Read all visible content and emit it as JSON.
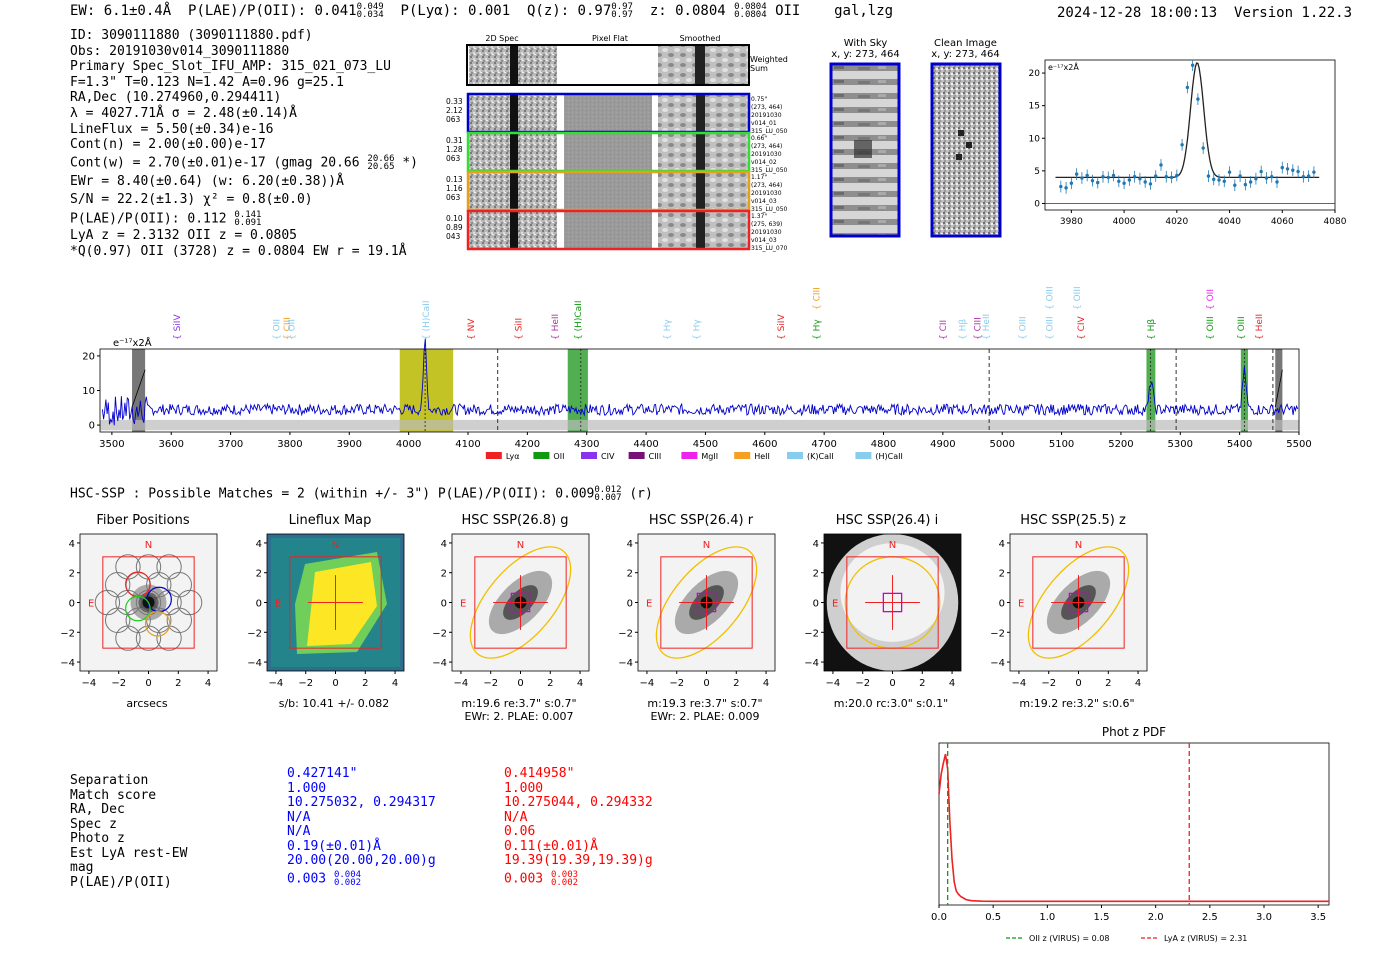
{
  "header": {
    "ew": "EW: 6.1±0.4Å",
    "plae_label": "P(LAE)/P(OII): 0.041",
    "plae_hi": "0.049",
    "plae_lo": "0.034",
    "plya": "P(Lyα): 0.001",
    "qz_label": "Q(z): 0.97",
    "qz_hi": "0.97",
    "qz_lo": "0.97",
    "z_label": "z: 0.0804",
    "z_hi": "0.0804",
    "z_lo": "0.0804",
    "z_line": "OII",
    "classes": "gal,lzg",
    "timestamp": "2024-12-28 18:00:13",
    "version": "Version 1.22.3"
  },
  "info": {
    "lines": [
      "ID: 3090111880 (3090111880.pdf)",
      "Obs: 20191030v014_3090111880",
      "Primary Spec_Slot_IFU_AMP: 315_021_073_LU",
      "F=1.3\"  T=0.123  N=1.42  A=0.96  g=25.1",
      "RA,Dec (10.274960,0.294411)",
      "λ = 4027.71Å  σ = 2.48(±0.14)Å",
      "LineFlux = 5.50(±0.34)e-16",
      "Cont(n) = 2.00(±0.00)e-17"
    ],
    "contw": "Cont(w) = 2.70(±0.01)e-17 (gmag 20.66",
    "contw_hi": "20.66",
    "contw_lo": "20.65",
    "contw_end": "*)",
    "ewr": "EWr = 8.40(±0.64) (w: 6.20(±0.38))Å",
    "sn": "S/N = 22.2(±1.3)  χ² = 0.8(±0.0)",
    "plae": "P(LAE)/P(OII): 0.112",
    "plae_hi": "0.141",
    "plae_lo": "0.091",
    "lya": "LyA z = 2.3132  OII z = 0.0805",
    "q": "*Q(0.97) OII (3728) z = 0.0804  EW r = 19.1Å"
  },
  "spec2d": {
    "col_titles": [
      "2D Spec",
      "Pixel Flat",
      "Smoothed"
    ],
    "weighted_label": "Weighted Sum",
    "rows": [
      {
        "left": [
          "0.33",
          "2.12",
          "063"
        ],
        "right": [
          "0.75\"",
          "(273, 464)",
          "20191030",
          "v014_01",
          "315_LU_050"
        ],
        "color": "#0000cc"
      },
      {
        "left": [
          "0.31",
          "1.28",
          "063"
        ],
        "right": [
          "0.66\"",
          "(273, 464)",
          "20191030",
          "v014_02",
          "315_LU_050"
        ],
        "color": "#33dd33"
      },
      {
        "left": [
          "0.13",
          "1.16",
          "063"
        ],
        "right": [
          "1.17\"",
          "(273, 464)",
          "20191030",
          "v014_03",
          "315_LU_050"
        ],
        "color": "#e6a020"
      },
      {
        "left": [
          "0.10",
          "0.89",
          "043"
        ],
        "right": [
          "1.37\"",
          "(275, 639)",
          "20191030",
          "v014_03",
          "315_LU_070"
        ],
        "color": "#ee2222"
      }
    ]
  },
  "stamps": {
    "with_sky": "With Sky",
    "with_sky_xy": "x, y: 273, 464",
    "clean": "Clean Image",
    "clean_xy": "x, y: 273, 464"
  },
  "zoom_plot": {
    "unit": "e⁻¹⁷x2Å"
  },
  "full_spec": {
    "unit": "e⁻¹⁷x2Å",
    "line_labels": [
      {
        "text": "SiIV",
        "wave": 3615,
        "color": "#8833ee",
        "tier": 0
      },
      {
        "text": "OII",
        "wave": 3782,
        "color": "#88ccee",
        "tier": 0
      },
      {
        "text": "CIII",
        "wave": 3800,
        "color": "#f5a020",
        "tier": 0
      },
      {
        "text": "OII",
        "wave": 3808,
        "color": "#88ccee",
        "tier": 0
      },
      {
        "text": "(H)CaII",
        "wave": 4034,
        "color": "#88ccee",
        "tier": 0
      },
      {
        "text": "NV",
        "wave": 4110,
        "color": "#ee2222",
        "tier": 0
      },
      {
        "text": "SiII",
        "wave": 4190,
        "color": "#ee2222",
        "tier": 0
      },
      {
        "text": "HeII",
        "wave": 4252,
        "color": "#aa33aa",
        "tier": 0
      },
      {
        "text": "(H)CaII",
        "wave": 4290,
        "color": "#119911",
        "tier": 0
      },
      {
        "text": "Hγ",
        "wave": 4440,
        "color": "#88ccee",
        "tier": 0
      },
      {
        "text": "Hγ",
        "wave": 4490,
        "color": "#88ccee",
        "tier": 0
      },
      {
        "text": "SiIV",
        "wave": 4632,
        "color": "#ee2222",
        "tier": 0
      },
      {
        "text": "Hγ",
        "wave": 4692,
        "color": "#119911",
        "tier": 0
      },
      {
        "text": "CIII",
        "wave": 4692,
        "color": "#f5a020",
        "tier": 1
      },
      {
        "text": "CII",
        "wave": 4905,
        "color": "#aa33aa",
        "tier": 0
      },
      {
        "text": "Hβ",
        "wave": 4938,
        "color": "#88ccee",
        "tier": 0
      },
      {
        "text": "CIII",
        "wave": 4963,
        "color": "#aa33aa",
        "tier": 0
      },
      {
        "text": "HeII",
        "wave": 4978,
        "color": "#88ccee",
        "tier": 0
      },
      {
        "text": "OIII",
        "wave": 5039,
        "color": "#88ccee",
        "tier": 0
      },
      {
        "text": "OIII",
        "wave": 5085,
        "color": "#88ccee",
        "tier": 0
      },
      {
        "text": "OIII",
        "wave": 5085,
        "color": "#88ccee",
        "tier": 1
      },
      {
        "text": "OIII",
        "wave": 5131,
        "color": "#88ccee",
        "tier": 1
      },
      {
        "text": "CIV",
        "wave": 5138,
        "color": "#ee2222",
        "tier": 0
      },
      {
        "text": "Hβ",
        "wave": 5256,
        "color": "#119911",
        "tier": 0
      },
      {
        "text": "OIII",
        "wave": 5355,
        "color": "#119911",
        "tier": 0
      },
      {
        "text": "OII",
        "wave": 5355,
        "color": "#ee22ee",
        "tier": 1
      },
      {
        "text": "OIII",
        "wave": 5407,
        "color": "#119911",
        "tier": 0
      },
      {
        "text": "HeII",
        "wave": 5438,
        "color": "#ee2222",
        "tier": 0
      }
    ],
    "legend": [
      {
        "label": "Lyα",
        "color": "#ee2222"
      },
      {
        "label": "OII",
        "color": "#119911"
      },
      {
        "label": "CIV",
        "color": "#8833ee"
      },
      {
        "label": "CIII",
        "color": "#771177"
      },
      {
        "label": "MgII",
        "color": "#ee22ee"
      },
      {
        "label": "HeII",
        "color": "#f5a020"
      },
      {
        "label": "(K)CaII",
        "color": "#88ccee"
      },
      {
        "label": "(H)CaII",
        "color": "#88ccee"
      }
    ]
  },
  "hsc": {
    "summary": "HSC-SSP : Possible Matches = 2 (within +/- 3\")  P(LAE)/P(OII): 0.009",
    "summary_hi": "0.012",
    "summary_lo": "0.007",
    "summary_end": "(r)",
    "cutouts": [
      {
        "title": "Fiber Positions",
        "caption1": "arcsecs",
        "caption2": ""
      },
      {
        "title": "Lineflux Map",
        "caption1": "s/b: 10.41 +/- 0.082",
        "caption2": ""
      },
      {
        "title": "HSC SSP(26.8) g",
        "caption1": "m:19.6  re:3.7\"  s:0.7\"",
        "caption2": "EWr: 2. PLAE: 0.007"
      },
      {
        "title": "HSC SSP(26.4) r",
        "caption1": "m:19.3  re:3.7\"  s:0.7\"",
        "caption2": "EWr: 2. PLAE: 0.009"
      },
      {
        "title": "HSC SSP(26.4) i",
        "caption1": "m:20.0 rc:3.0\"  s:0.1\"",
        "caption2": ""
      },
      {
        "title": "HSC SSP(25.5) z",
        "caption1": "m:19.2  re:3.2\"  s:0.6\"",
        "caption2": ""
      }
    ],
    "north": "N",
    "east": "E"
  },
  "match_table": {
    "labels": [
      "Separation",
      "Match score",
      "RA, Dec",
      "Spec z",
      "Photo z",
      "Est LyA rest-EW",
      "mag",
      "P(LAE)/P(OII)"
    ],
    "col1": [
      "0.427141\"",
      "1.000",
      "10.275032, 0.294317",
      "N/A",
      "N/A",
      "0.19(±0.01)Å",
      "20.00(20.00,20.00)g",
      "0.003"
    ],
    "col1_hi": "0.004",
    "col1_lo": "0.002",
    "col2": [
      "0.414958\"",
      "1.000",
      "10.275044, 0.294332",
      "N/A",
      "0.06",
      "0.11(±0.01)Å",
      "19.39(19.39,19.39)g",
      "0.003"
    ],
    "col2_hi": "0.003",
    "col2_lo": "0.002"
  },
  "chart_data": [
    {
      "type": "line",
      "title": "",
      "xlabel": "",
      "ylabel": "e⁻¹⁷x2Å",
      "xlim": [
        3970,
        4080
      ],
      "ylim": [
        -1,
        22
      ],
      "xticks": [
        3980,
        4000,
        4020,
        4040,
        4060,
        4080
      ],
      "yticks": [
        0,
        5,
        10,
        15,
        20
      ],
      "points": {
        "x": [
          3976,
          3978,
          3980,
          3982,
          3984,
          3986,
          3988,
          3990,
          3992,
          3994,
          3996,
          3998,
          4000,
          4002,
          4004,
          4006,
          4008,
          4010,
          4012,
          4014,
          4016,
          4018,
          4020,
          4022,
          4024,
          4026,
          4028,
          4030,
          4032,
          4034,
          4036,
          4038,
          4040,
          4042,
          4044,
          4046,
          4048,
          4050,
          4052,
          4054,
          4056,
          4058,
          4060,
          4062,
          4064,
          4066,
          4068,
          4070,
          4072
        ],
        "y": [
          2.6,
          2.4,
          3.1,
          4.5,
          3.9,
          4.3,
          3.5,
          3.2,
          4.1,
          4.0,
          4.3,
          3.4,
          3.1,
          3.6,
          4.1,
          3.8,
          3.3,
          3.0,
          4.2,
          5.9,
          4.1,
          4.0,
          4.3,
          9.0,
          17.8,
          21.2,
          16.0,
          8.5,
          4.2,
          3.7,
          3.6,
          3.4,
          4.8,
          2.8,
          4.2,
          2.9,
          3.3,
          3.8,
          4.9,
          3.9,
          4.1,
          3.3,
          5.5,
          5.3,
          5.1,
          4.9,
          4.1,
          4.2,
          4.8
        ]
      },
      "model": {
        "center": 4027.71,
        "sigma": 2.48,
        "amplitude": 17.6,
        "continuum": 4.0
      }
    },
    {
      "type": "line",
      "title": "",
      "xlabel": "",
      "ylabel": "e⁻¹⁷x2Å",
      "xlim": [
        3480,
        5500
      ],
      "ylim": [
        -2,
        22
      ],
      "xticks": [
        3500,
        3600,
        3700,
        3800,
        3900,
        4000,
        4100,
        4200,
        4300,
        4400,
        4500,
        4600,
        4700,
        4800,
        4900,
        5000,
        5100,
        5200,
        5300,
        5400,
        5500
      ],
      "yticks": [
        0,
        10,
        20
      ],
      "continuum": 4.5,
      "emission_peak": {
        "wave": 4027.7,
        "height": 20.5
      },
      "secondary_peaks": [
        {
          "wave": 5251,
          "height": 8.5
        },
        {
          "wave": 5408,
          "height": 11
        }
      ],
      "highlight_bands": [
        {
          "from": 3985,
          "to": 4075,
          "color": "#b8b800"
        },
        {
          "from": 4268,
          "to": 4302,
          "color": "#33a033"
        },
        {
          "from": 5243,
          "to": 5258,
          "color": "#33a033"
        },
        {
          "from": 5402,
          "to": 5414,
          "color": "#33a033"
        }
      ],
      "masked_bands": [
        {
          "from": 3534,
          "to": 3556
        },
        {
          "from": 5460,
          "to": 5472
        }
      ],
      "dashed_markers": [
        4150,
        4978,
        5293,
        5456
      ],
      "solid_markers": [
        4027.7,
        4290,
        5250,
        5408
      ]
    },
    {
      "type": "line",
      "title": "Phot z PDF",
      "xlabel": "",
      "ylabel": "",
      "xlim": [
        0.0,
        3.6
      ],
      "xticks": [
        0.0,
        0.5,
        1.0,
        1.5,
        2.0,
        2.5,
        3.0,
        3.5
      ],
      "x": [
        0.0,
        0.02,
        0.04,
        0.06,
        0.08,
        0.1,
        0.12,
        0.14,
        0.16,
        0.18,
        0.2,
        0.25,
        0.3,
        0.4,
        0.5,
        0.7,
        1.0,
        1.5,
        2.0,
        2.5,
        3.0,
        3.6
      ],
      "y": [
        0.72,
        0.85,
        0.92,
        0.98,
        0.88,
        0.55,
        0.3,
        0.15,
        0.09,
        0.07,
        0.055,
        0.035,
        0.028,
        0.025,
        0.024,
        0.024,
        0.024,
        0.024,
        0.024,
        0.024,
        0.024,
        0.024
      ],
      "markers": [
        {
          "label": "OII z (VIRUS) = 0.08",
          "value": 0.08,
          "color": "#119911"
        },
        {
          "label": "LyA z (VIRUS) = 2.31",
          "value": 2.31,
          "color": "#ee2222"
        }
      ]
    }
  ]
}
